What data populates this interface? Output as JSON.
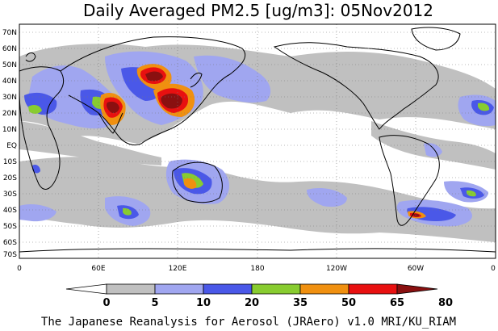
{
  "title": "Daily Averaged PM2.5 [ug/m3]: 05Nov2012",
  "footer": "The Japanese Reanalysis for Aerosol (JRAero) v1.0 MRI/KU_RIAM",
  "lat_labels": [
    "70N",
    "60N",
    "50N",
    "40N",
    "30N",
    "20N",
    "10N",
    "EQ",
    "10S",
    "20S",
    "30S",
    "40S",
    "50S",
    "60S",
    "70S"
  ],
  "lon_labels": [
    "0",
    "60E",
    "120E",
    "180",
    "120W",
    "60W",
    "0"
  ],
  "colorbar": {
    "labels": [
      "0",
      "5",
      "10",
      "20",
      "35",
      "50",
      "65",
      "80"
    ],
    "colors": [
      "#ffffff",
      "#c0c0c0",
      "#a0a6f0",
      "#4a58e8",
      "#88cc30",
      "#f09010",
      "#e81010",
      "#8a1010"
    ]
  }
}
